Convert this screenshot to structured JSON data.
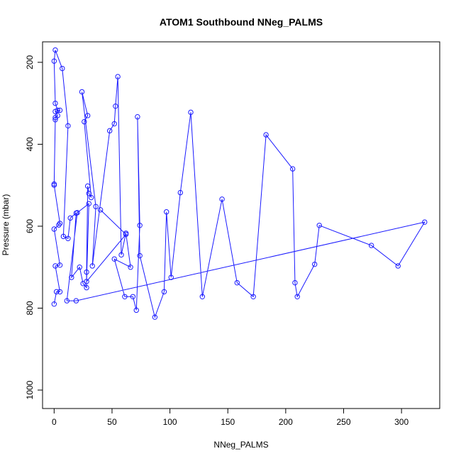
{
  "chart_data": {
    "type": "line",
    "title": "ATOM1 Southbound NNeg_PALMS",
    "xlabel": "NNeg_PALMS",
    "ylabel": "Pressure (mbar)",
    "xlim": [
      -10,
      333
    ],
    "ylim": [
      1045,
      150
    ],
    "y_reversed": true,
    "grid": false,
    "xticks": [
      0,
      50,
      100,
      150,
      200,
      250,
      300
    ],
    "yticks": [
      200,
      400,
      600,
      800,
      1000
    ],
    "colors": {
      "series": "#1a1aff",
      "axes": "#000000"
    },
    "marker": "open-circle",
    "series": [
      {
        "points": [
          [
            0,
            790
          ],
          [
            2,
            760
          ],
          [
            5,
            760
          ],
          [
            1,
            697
          ],
          [
            5,
            695
          ],
          [
            0,
            607
          ],
          [
            4,
            597
          ],
          [
            5,
            593
          ],
          [
            0,
            500
          ],
          [
            0,
            497
          ],
          [
            1,
            340
          ],
          [
            1,
            335
          ],
          [
            3,
            330
          ],
          [
            1,
            320
          ],
          [
            5,
            317
          ],
          [
            3,
            317
          ],
          [
            1,
            300
          ],
          [
            0,
            197
          ],
          [
            1,
            170
          ],
          [
            7,
            215
          ],
          [
            12,
            355
          ],
          [
            8,
            625
          ],
          [
            12,
            630
          ],
          [
            14,
            580
          ],
          [
            19,
            568
          ],
          [
            15,
            725
          ],
          [
            22,
            700
          ],
          [
            25,
            740
          ],
          [
            28,
            750
          ],
          [
            28,
            712
          ],
          [
            29,
            502
          ],
          [
            30,
            520
          ],
          [
            32,
            530
          ],
          [
            26,
            345
          ],
          [
            29,
            330
          ],
          [
            24,
            272
          ],
          [
            36,
            552
          ],
          [
            33,
            697
          ],
          [
            48,
            367
          ],
          [
            52,
            350
          ],
          [
            53,
            307
          ],
          [
            55,
            235
          ],
          [
            58,
            670
          ],
          [
            62,
            617
          ],
          [
            66,
            700
          ],
          [
            52,
            680
          ],
          [
            61,
            772
          ],
          [
            68,
            772
          ],
          [
            71,
            805
          ],
          [
            74,
            598
          ],
          [
            72,
            333
          ],
          [
            74,
            672
          ],
          [
            87,
            822
          ],
          [
            95,
            760
          ],
          [
            97,
            565
          ],
          [
            101,
            725
          ],
          [
            109,
            518
          ],
          [
            118,
            322
          ],
          [
            128,
            772
          ],
          [
            145,
            534
          ],
          [
            158,
            738
          ],
          [
            172,
            772
          ],
          [
            183,
            377
          ],
          [
            206,
            460
          ],
          [
            208,
            738
          ],
          [
            210,
            772
          ],
          [
            225,
            693
          ],
          [
            229,
            598
          ],
          [
            274,
            647
          ],
          [
            297,
            697
          ],
          [
            320,
            590
          ],
          [
            19,
            782
          ],
          [
            11,
            782
          ],
          [
            20,
            567
          ],
          [
            30,
            545
          ],
          [
            28,
            735
          ],
          [
            62,
            620
          ],
          [
            40,
            560
          ]
        ]
      }
    ]
  }
}
